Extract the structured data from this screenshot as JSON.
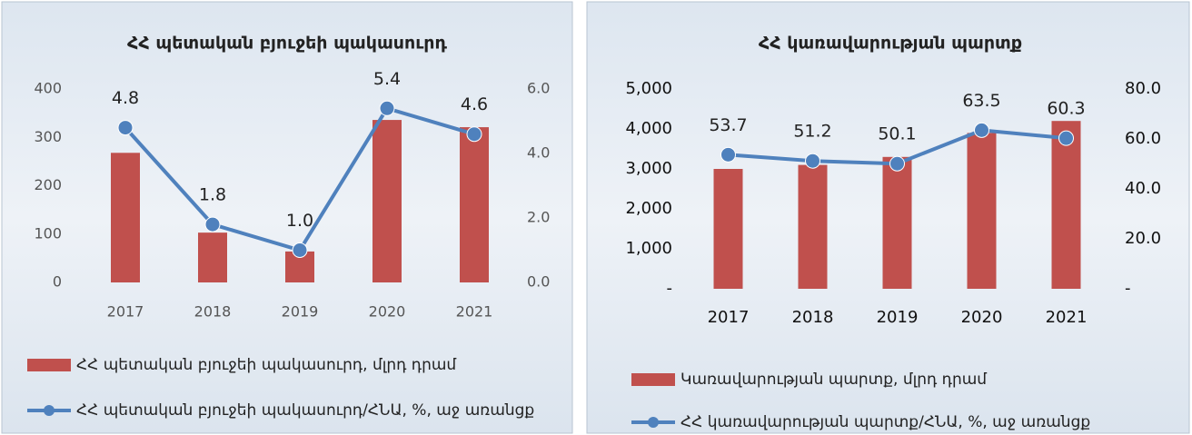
{
  "chart_data": [
    {
      "type": "combo",
      "title": "ՀՀ պետական բյուջեի պակասուրդ",
      "categories": [
        "2017",
        "2018",
        "2019",
        "2020",
        "2021"
      ],
      "series": [
        {
          "name": "ՀՀ պետական բյուջեի պակասուրդ, մլրդ դրամ",
          "type": "bar",
          "color": "#c0504d",
          "values": [
            268,
            103,
            64,
            336,
            321
          ]
        },
        {
          "name": "ՀՀ պետական բյուջեի պակասուրդ/ՀՆԱ, %, աջ առանցք",
          "type": "line",
          "axis": "y2",
          "color": "#4f81bd",
          "values": [
            4.8,
            1.8,
            1.0,
            5.4,
            4.6
          ],
          "value_labels": [
            "4.8",
            "1.8",
            "1.0",
            "5.4",
            "4.6"
          ]
        }
      ],
      "ylim": [
        0,
        400
      ],
      "yticks": [
        0,
        100,
        200,
        300,
        400
      ],
      "y2lim": [
        0,
        6
      ],
      "y2ticks": [
        {
          "value": 0,
          "label": "0.0"
        },
        {
          "value": 2,
          "label": "2.0"
        },
        {
          "value": 4,
          "label": "4.0"
        },
        {
          "value": 6,
          "label": "6.0"
        }
      ]
    },
    {
      "type": "combo",
      "title": "ՀՀ կառավարության պարտք",
      "categories": [
        "2017",
        "2018",
        "2019",
        "2020",
        "2021"
      ],
      "series": [
        {
          "name": "Կառավարության  պարտք, մլրդ դրամ",
          "type": "bar",
          "color": "#c0504d",
          "values": [
            3000,
            3100,
            3300,
            3900,
            4200
          ]
        },
        {
          "name": "ՀՀ կառավարության պարտք/ՀՆԱ, %, աջ առանցք",
          "type": "line",
          "axis": "y2",
          "color": "#4f81bd",
          "values": [
            53.7,
            51.2,
            50.1,
            63.5,
            60.3
          ]
        }
      ],
      "ylim": [
        0,
        5000
      ],
      "yticks": [
        {
          "value": 0,
          "label": "-"
        },
        {
          "value": 1000,
          "label": "1,000"
        },
        {
          "value": 2000,
          "label": "2,000"
        },
        {
          "value": 3000,
          "label": "3,000"
        },
        {
          "value": 4000,
          "label": "4,000"
        },
        {
          "value": 5000,
          "label": "5,000"
        }
      ],
      "y2lim": [
        0,
        80
      ],
      "y2ticks": [
        {
          "value": 0,
          "label": "-"
        },
        {
          "value": 20,
          "label": "20.0"
        },
        {
          "value": 40,
          "label": "40.0"
        },
        {
          "value": 60,
          "label": "60.0"
        },
        {
          "value": 80,
          "label": "80.0"
        }
      ]
    }
  ]
}
